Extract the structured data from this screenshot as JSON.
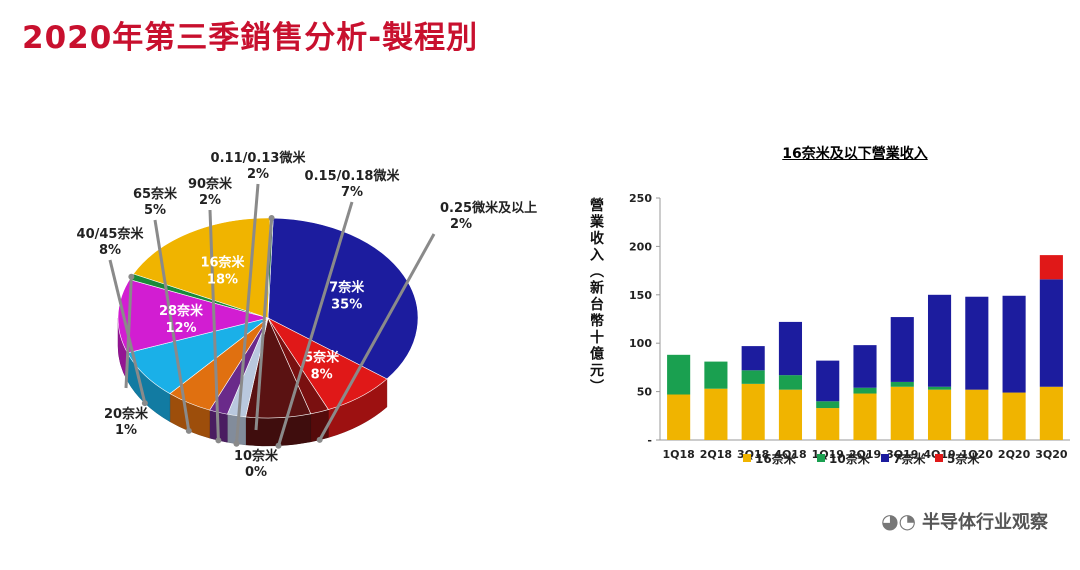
{
  "title": "2020年第三季銷售分析-製程別",
  "watermark": "半导体行业观察",
  "chart_data": [
    {
      "type": "pie",
      "slices": [
        {
          "name": "7奈米",
          "value": 35,
          "label": "35%",
          "color": "#1c1c9e",
          "inside": true
        },
        {
          "name": "5奈米",
          "value": 8,
          "label": "8%",
          "color": "#e01818",
          "inside": true
        },
        {
          "name": "0.25微米及以上",
          "value": 2,
          "label": "2%",
          "color": "#7a1010",
          "inside": false
        },
        {
          "name": "0.15/0.18微米",
          "value": 7,
          "label": "7%",
          "color": "#5a1212",
          "inside": false
        },
        {
          "name": "0.11/0.13微米",
          "value": 2,
          "label": "2%",
          "color": "#b9c8de",
          "inside": false
        },
        {
          "name": "90奈米",
          "value": 2,
          "label": "2%",
          "color": "#6a2a8a",
          "inside": false
        },
        {
          "name": "65奈米",
          "value": 5,
          "label": "5%",
          "color": "#e07010",
          "inside": false
        },
        {
          "name": "40/45奈米",
          "value": 8,
          "label": "8%",
          "color": "#1ab0e8",
          "inside": false
        },
        {
          "name": "28奈米",
          "value": 12,
          "label": "12%",
          "color": "#d21dd2",
          "inside": true
        },
        {
          "name": "20奈米",
          "value": 1,
          "label": "1%",
          "color": "#1a8a3a",
          "inside": false
        },
        {
          "name": "16奈米",
          "value": 18,
          "label": "18%",
          "color": "#f0b400",
          "inside": true
        },
        {
          "name": "10奈米",
          "value": 0,
          "label": "0%",
          "color": "#1a6a3a",
          "inside": false
        }
      ]
    },
    {
      "type": "bar",
      "stacked": true,
      "title": "16奈米及以下營業收入",
      "ylabel": "營業收入(新台幣十億元)",
      "ylim": [
        0,
        250
      ],
      "yticks": [
        "-",
        "50",
        "100",
        "150",
        "200",
        "250"
      ],
      "categories": [
        "1Q18",
        "2Q18",
        "3Q18",
        "4Q18",
        "1Q19",
        "2Q19",
        "3Q19",
        "4Q19",
        "1Q20",
        "2Q20",
        "3Q20"
      ],
      "series": [
        {
          "name": "16奈米",
          "color": "#f0b400",
          "values": [
            47,
            53,
            58,
            52,
            33,
            48,
            55,
            52,
            52,
            49,
            55
          ]
        },
        {
          "name": "10奈米",
          "color": "#1aa050",
          "values": [
            41,
            28,
            14,
            15,
            7,
            6,
            5,
            3,
            0,
            0,
            0
          ]
        },
        {
          "name": "7奈米",
          "color": "#1c1c9e",
          "values": [
            0,
            0,
            25,
            55,
            42,
            44,
            67,
            95,
            96,
            100,
            111
          ]
        },
        {
          "name": "5奈米",
          "color": "#e01818",
          "values": [
            0,
            0,
            0,
            0,
            0,
            0,
            0,
            0,
            0,
            0,
            25
          ]
        }
      ]
    }
  ]
}
